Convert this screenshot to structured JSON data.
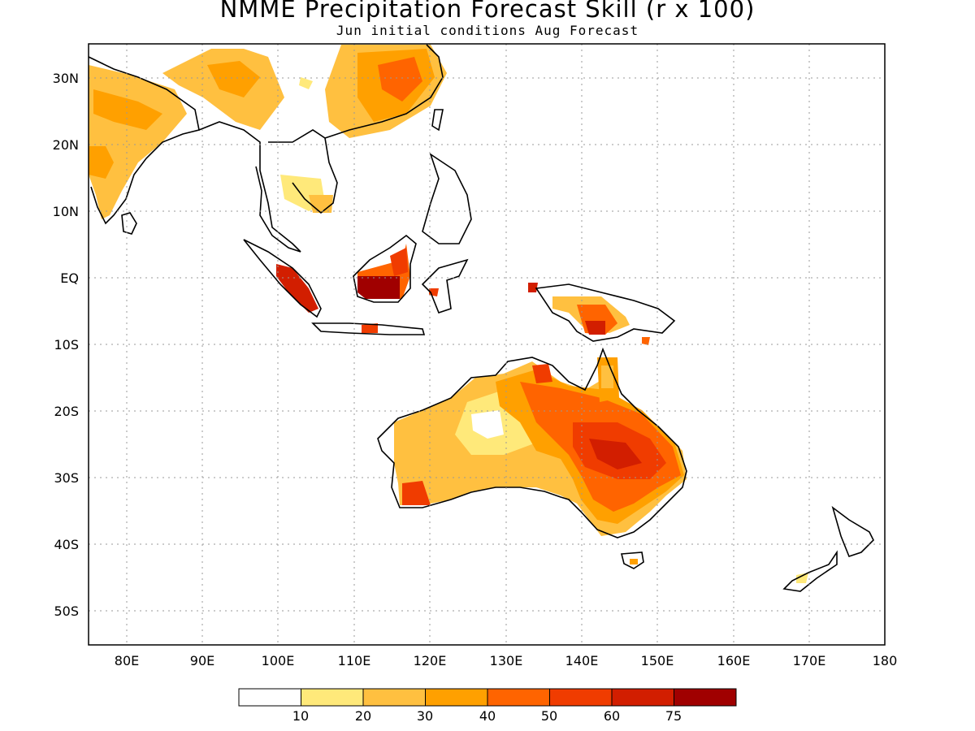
{
  "title": "NMME Precipitation Forecast Skill (r x 100)",
  "subtitle": "Jun initial conditions  Aug Forecast",
  "map": {
    "lat_labels": [
      "30N",
      "20N",
      "10N",
      "EQ",
      "10S",
      "20S",
      "30S",
      "40S",
      "50S"
    ],
    "lon_labels": [
      "80E",
      "90E",
      "100E",
      "110E",
      "120E",
      "130E",
      "140E",
      "150E",
      "160E",
      "170E",
      "180"
    ],
    "extent": {
      "lon": [
        75,
        180
      ],
      "lat": [
        -55,
        35
      ]
    },
    "grid": "dotted"
  },
  "colorbar": {
    "colors": [
      "#ffffff",
      "#ffe97a",
      "#ffc040",
      "#ffa000",
      "#ff6400",
      "#f03c00",
      "#d21e00",
      "#a00000"
    ],
    "labels": [
      "10",
      "20",
      "30",
      "40",
      "50",
      "60",
      "75"
    ]
  },
  "regions": [
    {
      "name": "Australia interior",
      "level": 4
    },
    {
      "name": "eastern Australia",
      "level": 6
    },
    {
      "name": "Borneo",
      "level": 7
    },
    {
      "name": "Sumatra",
      "level": 6
    },
    {
      "name": "New Guinea",
      "level": 6
    },
    {
      "name": "India",
      "level": 3
    },
    {
      "name": "southern China",
      "level": 4
    }
  ]
}
